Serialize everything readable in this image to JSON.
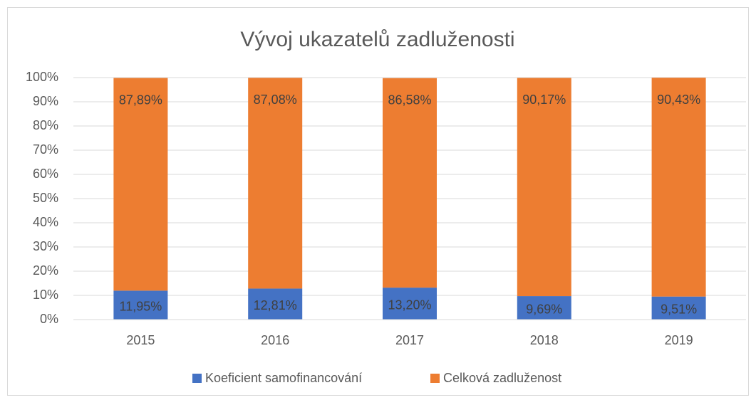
{
  "chart_data": {
    "type": "stacked_bar",
    "title": "Vývoj ukazatelů zadluženosti",
    "categories": [
      "2015",
      "2016",
      "2017",
      "2018",
      "2019"
    ],
    "series": [
      {
        "name": "Koeficient samofinancování",
        "color": "#4472c4",
        "values": [
          11.95,
          12.81,
          13.2,
          9.69,
          9.51
        ],
        "value_labels": [
          "11,95%",
          "12,81%",
          "13,20%",
          "9,69%",
          "9,51%"
        ]
      },
      {
        "name": "Celková zadluženost",
        "color": "#ed7d31",
        "values": [
          87.89,
          87.08,
          86.58,
          90.17,
          90.43
        ],
        "value_labels": [
          "87,89%",
          "87,08%",
          "86,58%",
          "90,17%",
          "90,43%"
        ]
      }
    ],
    "ylim": [
      0,
      100
    ],
    "yticks": [
      {
        "value": 0,
        "label": "0%"
      },
      {
        "value": 10,
        "label": "10%"
      },
      {
        "value": 20,
        "label": "20%"
      },
      {
        "value": 30,
        "label": "30%"
      },
      {
        "value": 40,
        "label": "40%"
      },
      {
        "value": 50,
        "label": "50%"
      },
      {
        "value": 60,
        "label": "60%"
      },
      {
        "value": 70,
        "label": "70%"
      },
      {
        "value": 80,
        "label": "80%"
      },
      {
        "value": 90,
        "label": "90%"
      },
      {
        "value": 100,
        "label": "100%"
      }
    ],
    "grid": true,
    "legend": "bottom"
  }
}
